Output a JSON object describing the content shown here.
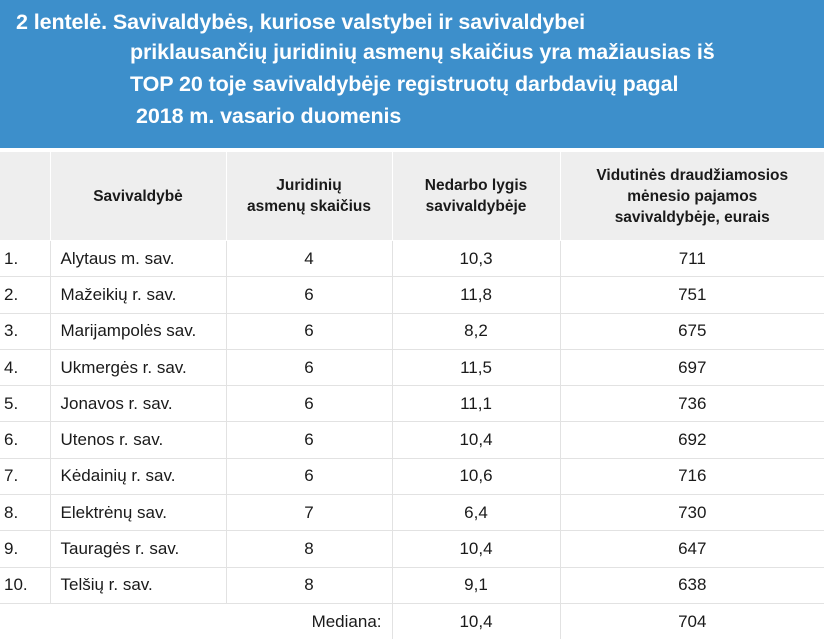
{
  "title_lines": [
    "2 lentelė. Savivaldybės, kuriose valstybei ir savivaldybei",
    "priklausančių juridinių asmenų skaičius yra mažiausias iš",
    "TOP 20 toje savivaldybėje registruotų darbdavių pagal",
    "2018 m. vasario duomenis"
  ],
  "columns": {
    "rank": "",
    "municipality": "Savivaldybė",
    "legal_entities_1": "Juridinių",
    "legal_entities_2": "asmenų skaičius",
    "unemployment_1": "Nedarbo lygis",
    "unemployment_2": "savivaldybėje",
    "income_1": "Vidutinės draudžiamosios",
    "income_2": "mėnesio pajamos",
    "income_3": "savivaldybėje, eurais"
  },
  "rows": [
    {
      "rank": "1.",
      "name": "Alytaus m. sav.",
      "entities": "4",
      "unemployment": "10,3",
      "income": "711"
    },
    {
      "rank": "2.",
      "name": "Mažeikių r. sav.",
      "entities": "6",
      "unemployment": "11,8",
      "income": "751"
    },
    {
      "rank": "3.",
      "name": "Marijampolės sav.",
      "entities": "6",
      "unemployment": "8,2",
      "income": "675"
    },
    {
      "rank": "4.",
      "name": "Ukmergės r. sav.",
      "entities": "6",
      "unemployment": "11,5",
      "income": "697"
    },
    {
      "rank": "5.",
      "name": "Jonavos r. sav.",
      "entities": "6",
      "unemployment": "11,1",
      "income": "736"
    },
    {
      "rank": "6.",
      "name": "Utenos r. sav.",
      "entities": "6",
      "unemployment": "10,4",
      "income": "692"
    },
    {
      "rank": "7.",
      "name": "Kėdainių r. sav.",
      "entities": "6",
      "unemployment": "10,6",
      "income": "716"
    },
    {
      "rank": "8.",
      "name": "Elektrėnų sav.",
      "entities": "7",
      "unemployment": "6,4",
      "income": "730"
    },
    {
      "rank": "9.",
      "name": "Tauragės r. sav.",
      "entities": "8",
      "unemployment": "10,4",
      "income": "647"
    },
    {
      "rank": "10.",
      "name": "Telšių r. sav.",
      "entities": "8",
      "unemployment": "9,1",
      "income": "638"
    }
  ],
  "median": {
    "label": "Mediana:",
    "unemployment": "10,4",
    "income": "704"
  }
}
